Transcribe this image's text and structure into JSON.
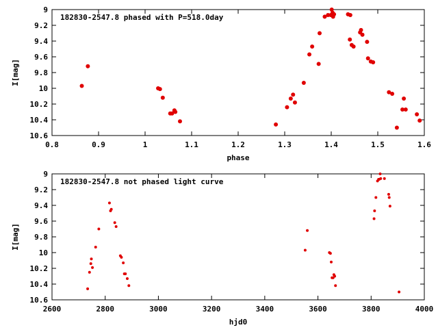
{
  "chart_data": [
    {
      "type": "scatter",
      "title": "182830-2547.8 phased with P=518.0day",
      "xlabel": "phase",
      "ylabel": "I[mag]",
      "xlim": [
        0.8,
        1.6
      ],
      "ylim": [
        9,
        10.6
      ],
      "y_inverted": true,
      "grid": false,
      "x_ticks": [
        "0.8",
        "0.9",
        "1",
        "1.1",
        "1.2",
        "1.3",
        "1.4",
        "1.5",
        "1.6"
      ],
      "y_ticks": [
        "9",
        "9.2",
        "9.4",
        "9.6",
        "9.8",
        "10",
        "10.2",
        "10.4",
        "10.6"
      ],
      "marker_color": "#e00000",
      "points": [
        [
          0.864,
          9.97
        ],
        [
          0.877,
          9.72
        ],
        [
          1.028,
          10.0
        ],
        [
          1.032,
          10.01
        ],
        [
          1.038,
          10.12
        ],
        [
          1.054,
          10.32
        ],
        [
          1.058,
          10.32
        ],
        [
          1.063,
          10.28
        ],
        [
          1.065,
          10.3
        ],
        [
          1.075,
          10.42
        ],
        [
          1.281,
          10.46
        ],
        [
          1.305,
          10.24
        ],
        [
          1.313,
          10.13
        ],
        [
          1.318,
          10.08
        ],
        [
          1.322,
          10.18
        ],
        [
          1.341,
          9.93
        ],
        [
          1.353,
          9.57
        ],
        [
          1.359,
          9.47
        ],
        [
          1.373,
          9.69
        ],
        [
          1.375,
          9.3
        ],
        [
          1.386,
          9.09
        ],
        [
          1.393,
          9.07
        ],
        [
          1.399,
          9.07
        ],
        [
          1.401,
          9.0
        ],
        [
          1.403,
          9.04
        ],
        [
          1.404,
          9.09
        ],
        [
          1.406,
          9.06
        ],
        [
          1.436,
          9.06
        ],
        [
          1.441,
          9.07
        ],
        [
          1.44,
          9.38
        ],
        [
          1.444,
          9.45
        ],
        [
          1.448,
          9.47
        ],
        [
          1.462,
          9.29
        ],
        [
          1.464,
          9.26
        ],
        [
          1.467,
          9.32
        ],
        [
          1.477,
          9.41
        ],
        [
          1.479,
          9.62
        ],
        [
          1.485,
          9.66
        ],
        [
          1.49,
          9.67
        ],
        [
          1.524,
          10.05
        ],
        [
          1.531,
          10.07
        ],
        [
          1.541,
          10.5
        ],
        [
          1.553,
          10.27
        ],
        [
          1.556,
          10.13
        ],
        [
          1.56,
          10.27
        ],
        [
          1.584,
          10.33
        ],
        [
          1.59,
          10.41
        ]
      ]
    },
    {
      "type": "scatter",
      "title": "182830-2547.8 not phased light curve",
      "xlabel": "hjd0",
      "ylabel": "I[mag]",
      "xlim": [
        2600,
        4000
      ],
      "ylim": [
        9,
        10.6
      ],
      "y_inverted": true,
      "grid": false,
      "x_ticks": [
        "2600",
        "2800",
        "3000",
        "3200",
        "3400",
        "3600",
        "3800",
        "4000"
      ],
      "y_ticks": [
        "9",
        "9.2",
        "9.4",
        "9.6",
        "9.8",
        "10",
        "10.2",
        "10.4",
        "10.6"
      ],
      "marker_color": "#e00000",
      "points": [
        [
          2734,
          10.46
        ],
        [
          2741,
          10.25
        ],
        [
          2746,
          10.14
        ],
        [
          2748,
          10.08
        ],
        [
          2752,
          10.19
        ],
        [
          2764,
          9.93
        ],
        [
          2776,
          9.7
        ],
        [
          2816,
          9.37
        ],
        [
          2820,
          9.47
        ],
        [
          2823,
          9.45
        ],
        [
          2836,
          9.62
        ],
        [
          2841,
          9.67
        ],
        [
          2857,
          10.04
        ],
        [
          2861,
          10.06
        ],
        [
          2868,
          10.13
        ],
        [
          2872,
          10.27
        ],
        [
          2876,
          10.27
        ],
        [
          2883,
          10.33
        ],
        [
          2889,
          10.42
        ],
        [
          3552,
          9.97
        ],
        [
          3560,
          9.72
        ],
        [
          3643,
          10.0
        ],
        [
          3647,
          10.01
        ],
        [
          3650,
          10.12
        ],
        [
          3653,
          10.32
        ],
        [
          3657,
          10.32
        ],
        [
          3660,
          10.28
        ],
        [
          3663,
          10.3
        ],
        [
          3666,
          10.42
        ],
        [
          3811,
          9.57
        ],
        [
          3813,
          9.47
        ],
        [
          3818,
          9.3
        ],
        [
          3824,
          9.09
        ],
        [
          3828,
          9.07
        ],
        [
          3830,
          9.07
        ],
        [
          3834,
          9.0
        ],
        [
          3836,
          9.06
        ],
        [
          3850,
          9.06
        ],
        [
          3866,
          9.26
        ],
        [
          3868,
          9.3
        ],
        [
          3871,
          9.41
        ],
        [
          3905,
          10.5
        ]
      ]
    }
  ]
}
